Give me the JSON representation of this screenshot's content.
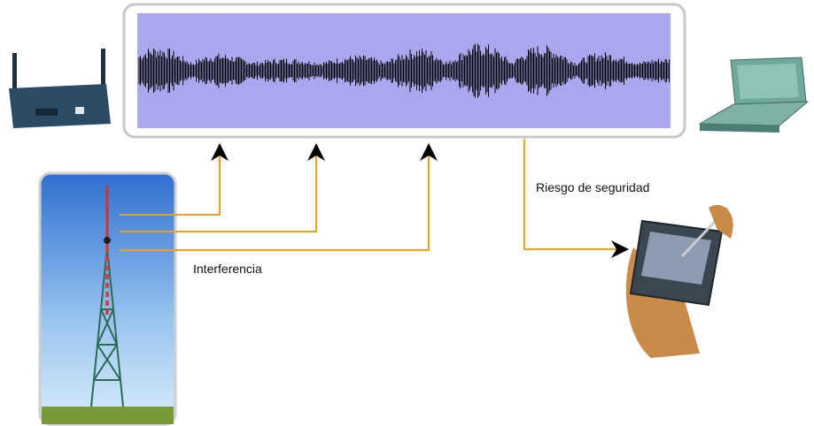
{
  "labels": {
    "security_risk": "Riesgo de seguridad",
    "interference": "Interferencia"
  }
}
